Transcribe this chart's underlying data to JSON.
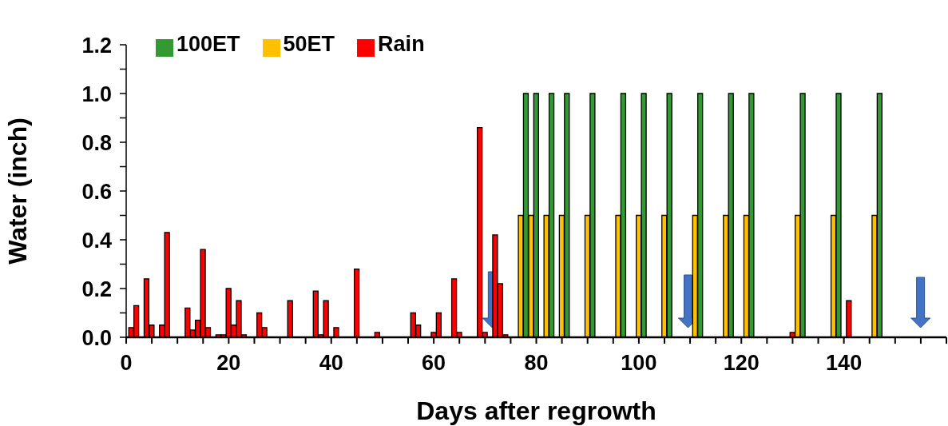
{
  "chart_data": {
    "type": "bar",
    "xlabel": "Days after regrowth",
    "ylabel": "Water (inch)",
    "xlim": [
      0,
      160
    ],
    "xticks": [
      0,
      {
        "value": 5,
        "label": null
      },
      {
        "value": 10,
        "label": null
      },
      {
        "value": 15,
        "label": null
      },
      20,
      {
        "value": 25,
        "label": null
      },
      {
        "value": 30,
        "label": null
      },
      {
        "value": 35,
        "label": null
      },
      40,
      {
        "value": 45,
        "label": null
      },
      {
        "value": 50,
        "label": null
      },
      {
        "value": 55,
        "label": null
      },
      60,
      {
        "value": 65,
        "label": null
      },
      {
        "value": 70,
        "label": null
      },
      {
        "value": 75,
        "label": null
      },
      80,
      {
        "value": 85,
        "label": null
      },
      {
        "value": 90,
        "label": null
      },
      {
        "value": 95,
        "label": null
      },
      100,
      {
        "value": 105,
        "label": null
      },
      {
        "value": 110,
        "label": null
      },
      {
        "value": 115,
        "label": null
      },
      120,
      {
        "value": 125,
        "label": null
      },
      {
        "value": 130,
        "label": null
      },
      {
        "value": 135,
        "label": null
      },
      140,
      {
        "value": 145,
        "label": null
      },
      {
        "value": 150,
        "label": null
      },
      {
        "value": 155,
        "label": null
      },
      {
        "value": 160,
        "label": null
      }
    ],
    "ylim": [
      0,
      1.2
    ],
    "yticks": [
      {
        "value": 0,
        "label": "0.0"
      },
      {
        "value": 0.1,
        "label": null
      },
      {
        "value": 0.2,
        "label": "0.2"
      },
      {
        "value": 0.3,
        "label": null
      },
      {
        "value": 0.4,
        "label": "0.4"
      },
      {
        "value": 0.5,
        "label": null
      },
      {
        "value": 0.6,
        "label": "0.6"
      },
      {
        "value": 0.7,
        "label": null
      },
      {
        "value": 0.8,
        "label": "0.8"
      },
      {
        "value": 0.9,
        "label": null
      },
      {
        "value": 1,
        "label": "1.0"
      },
      {
        "value": 1.1,
        "label": null
      },
      {
        "value": 1.2,
        "label": "1.2"
      }
    ],
    "grid": false,
    "legend": "top left",
    "series": [
      {
        "name": "Rain",
        "color": "#ff0000",
        "x": [
          1,
          2,
          4,
          5,
          7,
          8,
          12,
          13,
          14,
          15,
          16,
          18,
          19,
          20,
          21,
          22,
          23,
          26,
          27,
          32,
          37,
          38,
          39,
          41,
          45,
          49,
          56,
          57,
          60,
          61,
          64,
          65,
          69,
          70,
          72,
          73,
          74,
          130,
          141
        ],
        "values": [
          0.04,
          0.13,
          0.24,
          0.05,
          0.05,
          0.43,
          0.12,
          0.03,
          0.07,
          0.36,
          0.04,
          0.01,
          0.01,
          0.2,
          0.05,
          0.15,
          0.01,
          0.1,
          0.04,
          0.15,
          0.19,
          0.01,
          0.15,
          0.04,
          0.28,
          0.02,
          0.1,
          0.05,
          0.02,
          0.1,
          0.24,
          0.02,
          0.86,
          0.02,
          0.42,
          0.22,
          0.01,
          0.02,
          0.15
        ]
      },
      {
        "name": "50ET",
        "color": "#ffc000",
        "x": [
          77,
          79,
          82,
          85,
          90,
          96,
          100,
          105,
          111,
          117,
          121,
          131,
          138,
          146
        ],
        "values": [
          0.5,
          0.5,
          0.5,
          0.5,
          0.5,
          0.5,
          0.5,
          0.5,
          0.5,
          0.5,
          0.5,
          0.5,
          0.5,
          0.5
        ]
      },
      {
        "name": "100ET",
        "color": "#339933",
        "x": [
          78,
          80,
          83,
          86,
          91,
          97,
          101,
          106,
          112,
          118,
          122,
          132,
          139,
          147
        ],
        "values": [
          1,
          1,
          1,
          1,
          1,
          1,
          1,
          1,
          1,
          1,
          1,
          1,
          1,
          1
        ]
      }
    ]
  }
}
